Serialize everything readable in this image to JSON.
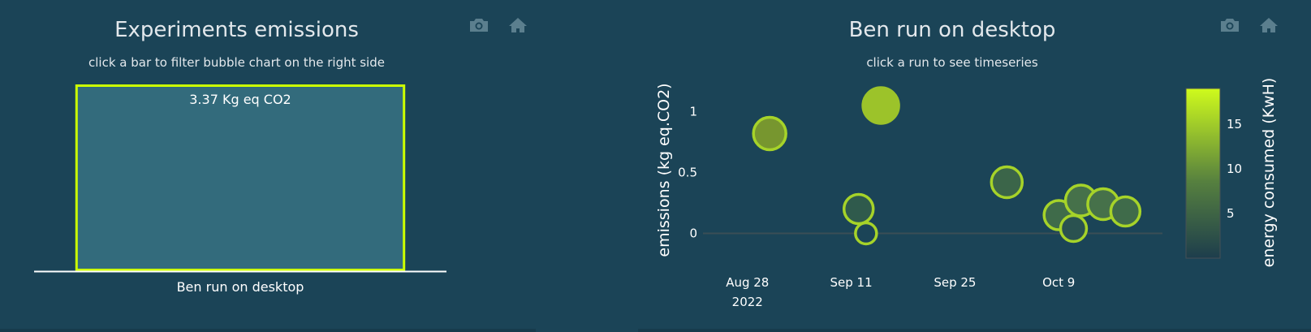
{
  "left_chart": {
    "title": "Experiments emissions",
    "subtitle": "click a bar to filter bubble chart on the right side",
    "bar_color": "#336b7c",
    "bar_border": "#ccff00",
    "chart_data": {
      "type": "bar",
      "categories": [
        "Ben run on desktop"
      ],
      "values": [
        3.37
      ],
      "data_labels": [
        "3.37 Kg eq CO2"
      ],
      "ylim": [
        0,
        3.37
      ]
    }
  },
  "right_chart": {
    "title": "Ben run on desktop",
    "subtitle": "click a run to see timeseries",
    "chart_data": {
      "type": "scatter",
      "ylabel": "emissions (kg eq.CO2)",
      "x_ticks": [
        "Aug 28",
        "Sep 11",
        "Sep 25",
        "Oct 9"
      ],
      "x_tick_dates": [
        "2022-08-28",
        "2022-09-11",
        "2022-09-25",
        "2022-10-09"
      ],
      "x_year_label": "2022",
      "y_ticks": [
        0,
        0.5,
        1
      ],
      "xlim": [
        "2022-08-22",
        "2022-10-23"
      ],
      "ylim": [
        -0.25,
        1.25
      ],
      "colorbar": {
        "title": "energy consumed (KwH)",
        "ticks": [
          5,
          10,
          15
        ],
        "range": [
          0,
          19
        ],
        "colors": [
          "#1d3d4c",
          "#cffb1c"
        ]
      },
      "points": [
        {
          "x": "2022-08-31",
          "y": 0.82,
          "energy": 9,
          "size": 20,
          "fill": "#77962f",
          "border": "#a6d329"
        },
        {
          "x": "2022-09-12",
          "y": 0.2,
          "energy": 4,
          "size": 18,
          "fill": "#2f5a4c",
          "border": "#a6d329"
        },
        {
          "x": "2022-09-13",
          "y": 0.0,
          "energy": 1,
          "size": 13,
          "fill": "#1b4457",
          "border": "#a6d329"
        },
        {
          "x": "2022-09-15",
          "y": 1.05,
          "energy": 14,
          "size": 22,
          "fill": "#9cc32a",
          "border": "#9cc32a"
        },
        {
          "x": "2022-10-02",
          "y": 0.42,
          "energy": 5,
          "size": 19,
          "fill": "#3b6549",
          "border": "#a6d329"
        },
        {
          "x": "2022-10-09",
          "y": 0.15,
          "energy": 5,
          "size": 18,
          "fill": "#3f6b4a",
          "border": "#a6d329"
        },
        {
          "x": "2022-10-11",
          "y": 0.04,
          "energy": 2,
          "size": 16,
          "fill": "#2a5250",
          "border": "#a6d329"
        },
        {
          "x": "2022-10-12",
          "y": 0.27,
          "energy": 6,
          "size": 19,
          "fill": "#46714a",
          "border": "#a6d329"
        },
        {
          "x": "2022-10-15",
          "y": 0.24,
          "energy": 6,
          "size": 19,
          "fill": "#46714a",
          "border": "#a6d329"
        },
        {
          "x": "2022-10-18",
          "y": 0.18,
          "energy": 5,
          "size": 18,
          "fill": "#3f6b4a",
          "border": "#a6d329"
        }
      ]
    }
  }
}
